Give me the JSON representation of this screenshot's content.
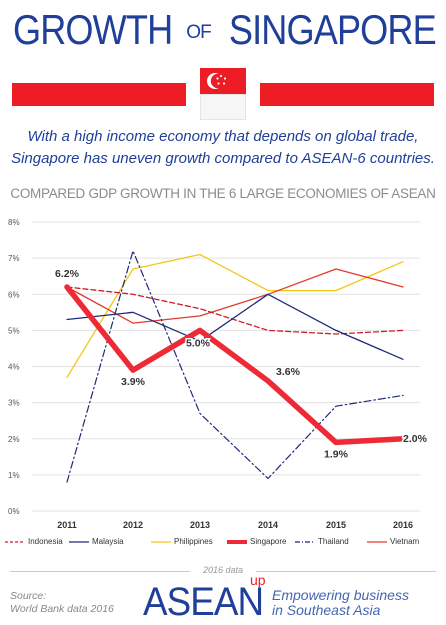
{
  "header": {
    "title_left": "GROWTH",
    "title_of": "OF",
    "title_right": "SINGAPORE"
  },
  "intro": {
    "line1": "With a high income economy that depends on global trade,",
    "line2": "Singapore has uneven growth compared to ASEAN-6 countries."
  },
  "chart_data": {
    "type": "line",
    "title": "COMPARED GDP GROWTH IN THE 6 LARGE ECONOMIES OF ASEAN",
    "x": [
      "2011",
      "2012",
      "2013",
      "2014",
      "2015",
      "2016"
    ],
    "ylim": [
      0,
      8
    ],
    "yticks": [
      "0%",
      "1%",
      "2%",
      "3%",
      "4%",
      "5%",
      "6%",
      "7%",
      "8%"
    ],
    "grid": true,
    "legend_position": "bottom",
    "series": [
      {
        "name": "Indonesia",
        "color": "#cc1f2b",
        "style": "dashed",
        "values": [
          6.2,
          6.0,
          5.6,
          5.0,
          4.9,
          5.0
        ]
      },
      {
        "name": "Malaysia",
        "color": "#1f2a7a",
        "style": "solid",
        "values": [
          5.3,
          5.5,
          4.7,
          6.0,
          5.0,
          4.2
        ]
      },
      {
        "name": "Philippines",
        "color": "#f5c518",
        "style": "solid",
        "values": [
          3.7,
          6.7,
          7.1,
          6.1,
          6.1,
          6.9
        ]
      },
      {
        "name": "Singapore",
        "color": "#ee2a37",
        "style": "thick",
        "values": [
          6.2,
          3.9,
          5.0,
          3.6,
          1.9,
          2.0
        ],
        "labels": [
          "6.2%",
          "3.9%",
          "5.0%",
          "3.6%",
          "1.9%",
          "2.0%"
        ]
      },
      {
        "name": "Thailand",
        "color": "#1f2a7a",
        "style": "dashdot",
        "values": [
          0.8,
          7.2,
          2.7,
          0.9,
          2.9,
          3.2
        ]
      },
      {
        "name": "Vietnam",
        "color": "#e23a2e",
        "style": "solid",
        "values": [
          6.2,
          5.2,
          5.4,
          6.0,
          6.7,
          6.2
        ]
      }
    ]
  },
  "footer": {
    "data_year": "2016 data",
    "source_label": "Source:",
    "source_text": "World Bank data 2016",
    "brand": "ASEAN",
    "brand_sup": "up",
    "tagline1": "Empowering business",
    "tagline2": "in Southeast Asia"
  },
  "colors": {
    "brand_blue": "#1f3f98",
    "brand_red": "#ee1c25"
  }
}
